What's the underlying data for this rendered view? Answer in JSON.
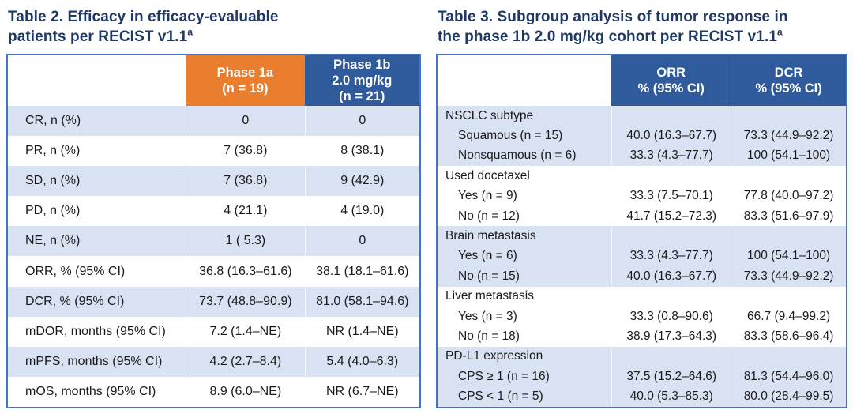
{
  "colors": {
    "title_navy": "#1F3864",
    "header_blue": "#2F5B9D",
    "header_orange": "#E87E2E",
    "row_stripe_blue": "#D9E2F3",
    "table_border_blue": "#4472C4",
    "body_text": "#1a1a1a"
  },
  "table2": {
    "title_lines": [
      "Table 2. Efficacy in efficacy-evaluable",
      "patients per RECIST v1.1"
    ],
    "title_sup": "a",
    "header": {
      "phase1a_lines": [
        "Phase 1a",
        "(n = 19)"
      ],
      "phase1b_lines": [
        "Phase 1b",
        "2.0 mg/kg",
        "(n = 21)"
      ]
    },
    "rows": [
      {
        "label": "CR, n (%)",
        "phase1a": "0",
        "phase1b": "0"
      },
      {
        "label": "PR, n (%)",
        "phase1a": "7 (36.8)",
        "phase1b": "8 (38.1)"
      },
      {
        "label": "SD, n (%)",
        "phase1a": "7 (36.8)",
        "phase1b": "9 (42.9)"
      },
      {
        "label": "PD, n (%)",
        "phase1a": "4 (21.1)",
        "phase1b": "4 (19.0)"
      },
      {
        "label": "NE, n (%)",
        "phase1a": "1 ( 5.3)",
        "phase1b": "0"
      },
      {
        "label": "ORR, % (95% CI)",
        "phase1a": "36.8 (16.3–61.6)",
        "phase1b": "38.1 (18.1–61.6)"
      },
      {
        "label": "DCR, % (95% CI)",
        "phase1a": "73.7 (48.8–90.9)",
        "phase1b": "81.0 (58.1–94.6)"
      },
      {
        "label": "mDOR, months (95% CI)",
        "phase1a": "7.2 (1.4–NE)",
        "phase1b": "NR (1.4–NE)"
      },
      {
        "label": "mPFS, months (95% CI)",
        "phase1a": "4.2 (2.7–8.4)",
        "phase1b": "5.4 (4.0–6.3)"
      },
      {
        "label": "mOS, months (95% CI)",
        "phase1a": "8.9 (6.0–NE)",
        "phase1b": "NR (6.7–NE)"
      }
    ]
  },
  "table3": {
    "title_lines": [
      "Table 3. Subgroup analysis of tumor response in",
      "the phase 1b 2.0 mg/kg cohort per RECIST v1.1"
    ],
    "title_sup": "a",
    "header": {
      "orr_lines": [
        "ORR",
        "% (95% CI)"
      ],
      "dcr_lines": [
        "DCR",
        "% (95% CI)"
      ]
    },
    "groups": [
      {
        "label": "NSCLC subtype",
        "rows": [
          {
            "label": "Squamous (n = 15)",
            "orr": "40.0 (16.3–67.7)",
            "dcr": "73.3 (44.9–92.2)"
          },
          {
            "label": "Nonsquamous (n = 6)",
            "orr": "33.3 (4.3–77.7)",
            "dcr": "100 (54.1–100)"
          }
        ]
      },
      {
        "label": "Used docetaxel",
        "rows": [
          {
            "label": "Yes (n = 9)",
            "orr": "33.3 (7.5–70.1)",
            "dcr": "77.8 (40.0–97.2)"
          },
          {
            "label": "No (n = 12)",
            "orr": "41.7 (15.2–72.3)",
            "dcr": "83.3 (51.6–97.9)"
          }
        ]
      },
      {
        "label": "Brain metastasis",
        "rows": [
          {
            "label": "Yes (n = 6)",
            "orr": "33.3 (4.3–77.7)",
            "dcr": "100 (54.1–100)"
          },
          {
            "label": "No (n = 15)",
            "orr": "40.0 (16.3–67.7)",
            "dcr": "73.3 (44.9–92.2)"
          }
        ]
      },
      {
        "label": "Liver metastasis",
        "rows": [
          {
            "label": "Yes (n = 3)",
            "orr": "33.3 (0.8–90.6)",
            "dcr": "66.7 (9.4–99.2)"
          },
          {
            "label": "No (n = 18)",
            "orr": "38.9 (17.3–64.3)",
            "dcr": "83.3 (58.6–96.4)"
          }
        ]
      },
      {
        "label": "PD-L1 expression",
        "rows": [
          {
            "label": "CPS ≥ 1 (n = 16)",
            "orr": "37.5 (15.2–64.6)",
            "dcr": "81.3 (54.4–96.0)"
          },
          {
            "label": "CPS < 1 (n = 5)",
            "orr": "40.0 (5.3–85.3)",
            "dcr": "80.0 (28.4–99.5)"
          }
        ]
      }
    ]
  }
}
